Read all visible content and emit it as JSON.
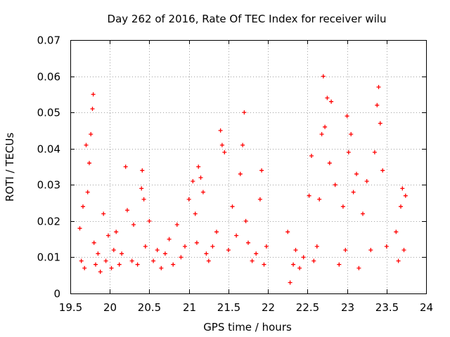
{
  "chart_data": {
    "type": "scatter",
    "title": "Day 262 of 2016, Rate Of TEC Index for receiver wilu",
    "xlabel": "GPS time / hours",
    "ylabel": "ROTI / TECUs",
    "xlim": [
      19.5,
      24
    ],
    "ylim": [
      0,
      0.07
    ],
    "x_ticks": [
      "19.5",
      "20",
      "20.5",
      "21",
      "21.5",
      "22",
      "22.5",
      "23",
      "23.5",
      "24"
    ],
    "y_ticks": [
      "0",
      "0.01",
      "0.02",
      "0.03",
      "0.04",
      "0.05",
      "0.06",
      "0.07"
    ],
    "grid": true,
    "marker": "+",
    "color": "#ff0000",
    "series": [
      {
        "name": "ROTI",
        "x": [
          19.62,
          19.64,
          19.66,
          19.68,
          19.7,
          19.72,
          19.74,
          19.76,
          19.78,
          19.79,
          19.8,
          19.82,
          19.85,
          19.88,
          19.92,
          19.95,
          19.98,
          20.02,
          20.05,
          20.08,
          20.12,
          20.15,
          20.2,
          20.22,
          20.28,
          20.3,
          20.35,
          20.4,
          20.41,
          20.43,
          20.45,
          20.5,
          20.55,
          20.6,
          20.65,
          20.7,
          20.75,
          20.8,
          20.85,
          20.9,
          20.95,
          21.0,
          21.05,
          21.08,
          21.1,
          21.12,
          21.15,
          21.18,
          21.22,
          21.25,
          21.3,
          21.35,
          21.4,
          21.42,
          21.45,
          21.5,
          21.55,
          21.6,
          21.65,
          21.68,
          21.7,
          21.72,
          21.75,
          21.8,
          21.85,
          21.9,
          21.92,
          21.95,
          21.98,
          22.25,
          22.28,
          22.32,
          22.35,
          22.4,
          22.45,
          22.52,
          22.55,
          22.58,
          22.62,
          22.65,
          22.68,
          22.7,
          22.72,
          22.75,
          22.78,
          22.8,
          22.85,
          22.9,
          22.95,
          22.98,
          23.0,
          23.02,
          23.05,
          23.08,
          23.12,
          23.15,
          23.2,
          23.25,
          23.3,
          23.35,
          23.38,
          23.4,
          23.42,
          23.45,
          23.5,
          23.62,
          23.65,
          23.68,
          23.7,
          23.72,
          23.74
        ],
        "y": [
          0.018,
          0.009,
          0.024,
          0.007,
          0.041,
          0.028,
          0.036,
          0.044,
          0.051,
          0.055,
          0.014,
          0.008,
          0.011,
          0.006,
          0.022,
          0.009,
          0.016,
          0.007,
          0.012,
          0.017,
          0.008,
          0.011,
          0.035,
          0.023,
          0.009,
          0.019,
          0.008,
          0.029,
          0.034,
          0.026,
          0.013,
          0.02,
          0.009,
          0.012,
          0.007,
          0.011,
          0.015,
          0.008,
          0.019,
          0.01,
          0.013,
          0.026,
          0.031,
          0.022,
          0.014,
          0.035,
          0.032,
          0.028,
          0.011,
          0.009,
          0.013,
          0.017,
          0.045,
          0.041,
          0.039,
          0.012,
          0.024,
          0.016,
          0.033,
          0.041,
          0.05,
          0.02,
          0.014,
          0.009,
          0.011,
          0.026,
          0.034,
          0.008,
          0.013,
          0.017,
          0.003,
          0.008,
          0.012,
          0.007,
          0.01,
          0.027,
          0.038,
          0.009,
          0.013,
          0.026,
          0.044,
          0.06,
          0.046,
          0.054,
          0.036,
          0.053,
          0.03,
          0.008,
          0.024,
          0.012,
          0.049,
          0.039,
          0.044,
          0.028,
          0.033,
          0.007,
          0.022,
          0.031,
          0.012,
          0.039,
          0.052,
          0.057,
          0.047,
          0.034,
          0.013,
          0.017,
          0.009,
          0.024,
          0.029,
          0.012,
          0.027
        ]
      }
    ]
  }
}
